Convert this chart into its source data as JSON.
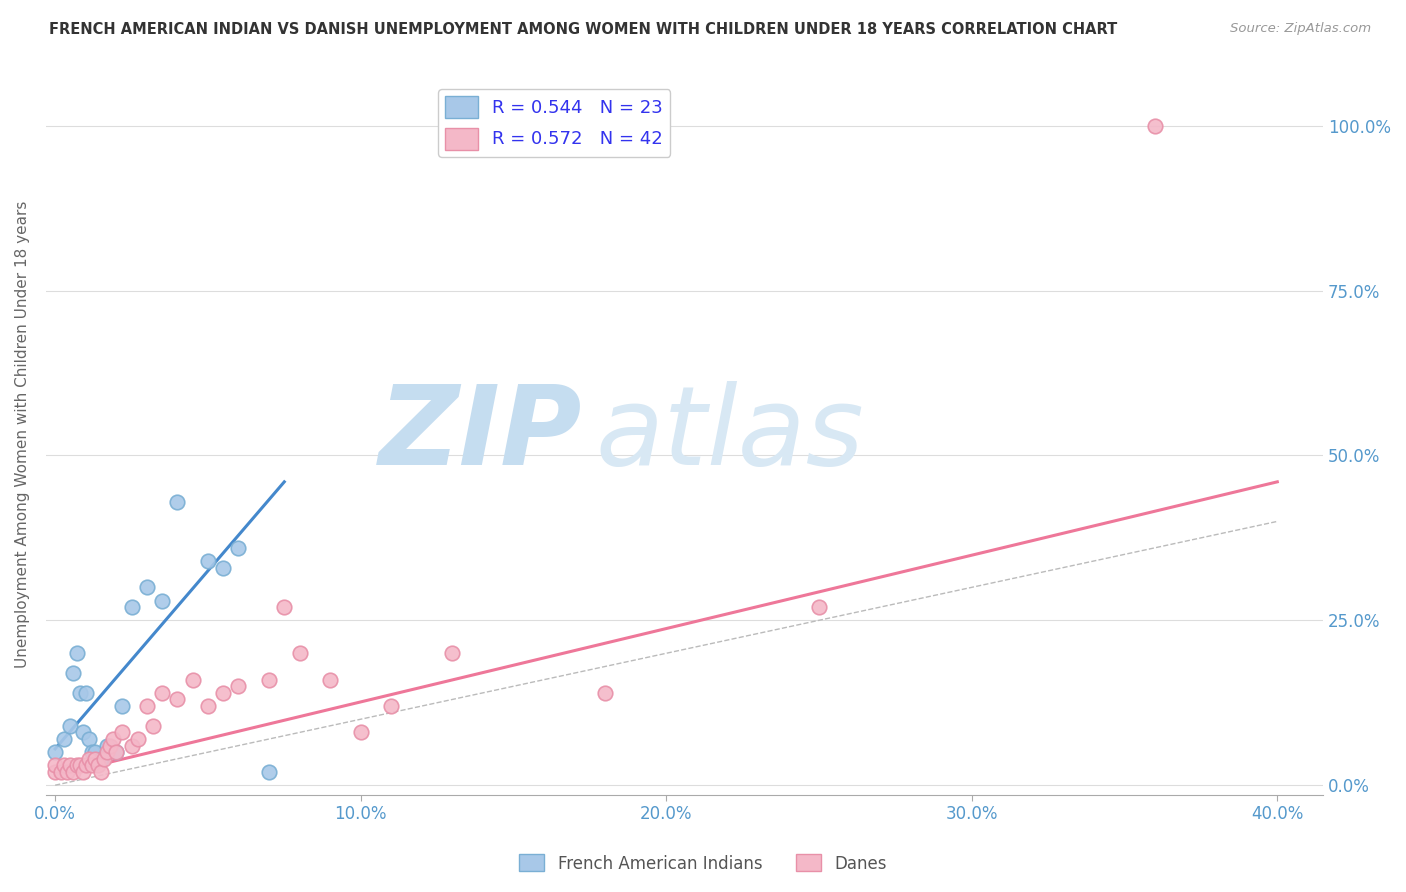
{
  "title": "FRENCH AMERICAN INDIAN VS DANISH UNEMPLOYMENT AMONG WOMEN WITH CHILDREN UNDER 18 YEARS CORRELATION CHART",
  "source": "Source: ZipAtlas.com",
  "xlabel_ticks": [
    "0.0%",
    "10.0%",
    "20.0%",
    "30.0%",
    "40.0%"
  ],
  "xlabel_tick_vals": [
    0.0,
    0.1,
    0.2,
    0.3,
    0.4
  ],
  "ylabel_ticks": [
    "0.0%",
    "25.0%",
    "50.0%",
    "75.0%",
    "100.0%"
  ],
  "ylabel_tick_vals": [
    0.0,
    0.25,
    0.5,
    0.75,
    1.0
  ],
  "ylabel": "Unemployment Among Women with Children Under 18 years",
  "xlim": [
    -0.003,
    0.415
  ],
  "ylim": [
    -0.015,
    1.08
  ],
  "legend_r_blue": "R = 0.544",
  "legend_n_blue": "N = 23",
  "legend_r_pink": "R = 0.572",
  "legend_n_pink": "N = 42",
  "blue_scatter_x": [
    0.0,
    0.003,
    0.005,
    0.006,
    0.007,
    0.008,
    0.009,
    0.01,
    0.011,
    0.012,
    0.013,
    0.015,
    0.017,
    0.02,
    0.022,
    0.025,
    0.03,
    0.035,
    0.04,
    0.05,
    0.055,
    0.06,
    0.07
  ],
  "blue_scatter_y": [
    0.05,
    0.07,
    0.09,
    0.17,
    0.2,
    0.14,
    0.08,
    0.14,
    0.07,
    0.05,
    0.05,
    0.04,
    0.06,
    0.05,
    0.12,
    0.27,
    0.3,
    0.28,
    0.43,
    0.34,
    0.33,
    0.36,
    0.02
  ],
  "pink_scatter_x": [
    0.0,
    0.0,
    0.002,
    0.003,
    0.004,
    0.005,
    0.006,
    0.007,
    0.008,
    0.009,
    0.01,
    0.011,
    0.012,
    0.013,
    0.014,
    0.015,
    0.016,
    0.017,
    0.018,
    0.019,
    0.02,
    0.022,
    0.025,
    0.027,
    0.03,
    0.032,
    0.035,
    0.04,
    0.045,
    0.05,
    0.055,
    0.06,
    0.07,
    0.075,
    0.08,
    0.09,
    0.1,
    0.11,
    0.13,
    0.18,
    0.25,
    0.36
  ],
  "pink_scatter_y": [
    0.02,
    0.03,
    0.02,
    0.03,
    0.02,
    0.03,
    0.02,
    0.03,
    0.03,
    0.02,
    0.03,
    0.04,
    0.03,
    0.04,
    0.03,
    0.02,
    0.04,
    0.05,
    0.06,
    0.07,
    0.05,
    0.08,
    0.06,
    0.07,
    0.12,
    0.09,
    0.14,
    0.13,
    0.16,
    0.12,
    0.14,
    0.15,
    0.16,
    0.27,
    0.2,
    0.16,
    0.08,
    0.12,
    0.2,
    0.14,
    0.27,
    1.0
  ],
  "blue_line_x": [
    0.0,
    0.075
  ],
  "blue_line_y": [
    0.055,
    0.46
  ],
  "pink_line_x": [
    0.0,
    0.4
  ],
  "pink_line_y": [
    0.015,
    0.46
  ],
  "diag_line_x": [
    0.0,
    0.4
  ],
  "diag_line_y": [
    0.0,
    0.4
  ],
  "blue_color": "#a8c8e8",
  "blue_edge": "#7aafd4",
  "pink_color": "#f4b8c8",
  "pink_edge": "#e890a8",
  "blue_line_color": "#4488cc",
  "pink_line_color": "#ee7799",
  "diag_color": "#bbbbbb",
  "background_color": "#ffffff",
  "zip_color": "#c8dff0",
  "atlas_color": "#c8dff0"
}
